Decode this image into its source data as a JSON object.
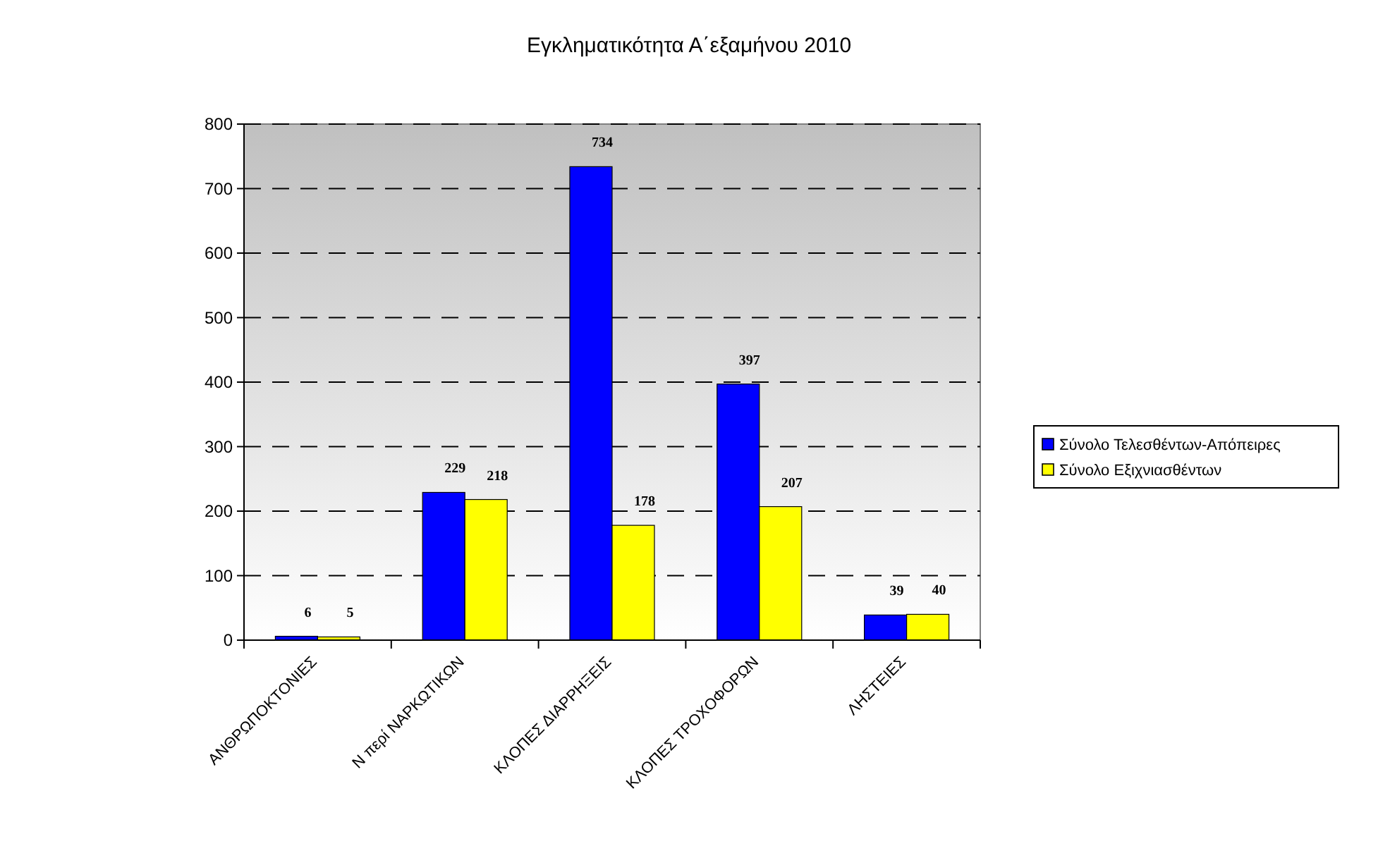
{
  "chart_data": {
    "type": "bar",
    "title": "Εγκληματικότητα Α΄εξαμήνου 2010",
    "categories": [
      "ΑΝΘΡΩΠΟΚΤΟΝΙΕΣ",
      "Ν περί ΝΑΡΚΩΤΙΚΩΝ",
      "ΚΛΟΠΕΣ ΔΙΑΡΡΗΞΕΙΣ",
      "ΚΛΟΠΕΣ ΤΡΟΧΟΦΟΡΩΝ",
      "ΛΗΣΤΕΙΕΣ"
    ],
    "series": [
      {
        "name": "Σύνολο Τελεσθέντων-Απόπειρες",
        "color": "#0000ff",
        "values": [
          6,
          229,
          734,
          397,
          39
        ]
      },
      {
        "name": "Σύνολο Εξιχνιασθέντων",
        "color": "#ffff00",
        "values": [
          5,
          218,
          178,
          207,
          40
        ]
      }
    ],
    "ylim": [
      0,
      800
    ],
    "yticks": [
      0,
      100,
      200,
      300,
      400,
      500,
      600,
      700,
      800
    ],
    "grid": "y",
    "legend": "right",
    "data_labels": true
  }
}
